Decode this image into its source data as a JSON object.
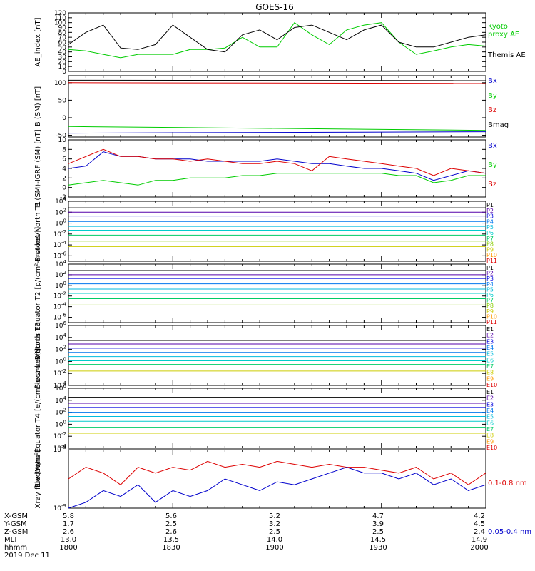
{
  "title": "GOES-16",
  "time_labels": [
    "1800",
    "1830",
    "1900",
    "1930",
    "2000"
  ],
  "ephemeris": {
    "row_labels": [
      "X-GSM",
      "Y-GSM",
      "Z-GSM",
      "MLT",
      "hhmm"
    ],
    "date": "2019 Dec 11",
    "rows": [
      [
        "5.8",
        "5.6",
        "5.2",
        "4.7",
        "4.2"
      ],
      [
        "1.7",
        "2.5",
        "3.2",
        "3.9",
        "4.5"
      ],
      [
        "2.6",
        "2.6",
        "2.5",
        "2.5",
        "2.4"
      ],
      [
        "13.0",
        "13.5",
        "14.0",
        "14.5",
        "14.9"
      ],
      [
        "1800",
        "1830",
        "1900",
        "1930",
        "2000"
      ]
    ]
  },
  "colors": {
    "black": "#000000",
    "green": "#00cc00",
    "red": "#dd0000",
    "blue": "#0000cc",
    "p_series": [
      "#000000",
      "#5500aa",
      "#0000dd",
      "#0077ee",
      "#00bbdd",
      "#00cccc",
      "#00cc66",
      "#88cc00",
      "#cccc00",
      "#ff9900",
      "#dd0000"
    ],
    "e_series": [
      "#000000",
      "#5500aa",
      "#0000dd",
      "#0077ee",
      "#00bbdd",
      "#00cccc",
      "#00cc66",
      "#cccc00",
      "#ff9900",
      "#dd0000"
    ]
  },
  "chart_data": [
    {
      "type": "line",
      "ylabel": "AE_index [nT]",
      "ylim": [
        0,
        120
      ],
      "y_ticks": [
        "0",
        "10",
        "20",
        "30",
        "40",
        "50",
        "60",
        "70",
        "80",
        "90",
        "100",
        "110",
        "120"
      ],
      "x": [
        0,
        5,
        10,
        15,
        20,
        25,
        30,
        35,
        40,
        45,
        50,
        55,
        60,
        65,
        70,
        75,
        80,
        85,
        90,
        95,
        100,
        105,
        110,
        115,
        120
      ],
      "series": [
        {
          "name": "Kyoto proxy AE",
          "color": "#00cc00",
          "values": [
            45,
            42,
            35,
            28,
            35,
            35,
            35,
            45,
            45,
            48,
            70,
            50,
            50,
            100,
            75,
            55,
            85,
            95,
            100,
            60,
            35,
            42,
            50,
            55,
            52
          ]
        },
        {
          "name": "Themis AE",
          "color": "#000000",
          "values": [
            55,
            80,
            95,
            48,
            45,
            55,
            95,
            70,
            45,
            40,
            75,
            85,
            65,
            90,
            95,
            80,
            65,
            85,
            95,
            60,
            50,
            50,
            60,
            70,
            75
          ]
        }
      ]
    },
    {
      "type": "line",
      "ylabel": "B (SM) [nT]",
      "ylim": [
        -55,
        120
      ],
      "y_ticks": [
        "-50",
        "0",
        "50",
        "100"
      ],
      "x": [
        0,
        120
      ],
      "series": [
        {
          "name": "Bx",
          "color": "#0000cc",
          "values": [
            -44,
            -40
          ]
        },
        {
          "name": "By",
          "color": "#00cc00",
          "values": [
            -25,
            -36
          ]
        },
        {
          "name": "Bz",
          "color": "#dd0000",
          "values": [
            100,
            98
          ]
        },
        {
          "name": "Bmag",
          "color": "#000000",
          "values": [
            107,
            106
          ]
        }
      ]
    },
    {
      "type": "line",
      "ylabel": "B (SM)-IGRF (SM) [nT]",
      "ylim": [
        -2,
        10
      ],
      "y_ticks": [
        "-2",
        "0",
        "2",
        "4",
        "6",
        "8",
        "10"
      ],
      "x": [
        0,
        5,
        10,
        15,
        20,
        25,
        30,
        35,
        40,
        45,
        50,
        55,
        60,
        65,
        70,
        75,
        80,
        85,
        90,
        95,
        100,
        105,
        110,
        115,
        120
      ],
      "series": [
        {
          "name": "Bx",
          "color": "#0000cc",
          "values": [
            4.0,
            4.5,
            7.5,
            6.5,
            6.5,
            6.0,
            6.0,
            6.0,
            5.5,
            5.5,
            5.5,
            5.5,
            6.0,
            5.5,
            5.0,
            5.0,
            4.5,
            4.0,
            4.0,
            3.5,
            3.0,
            1.5,
            2.5,
            3.5,
            3.0
          ]
        },
        {
          "name": "By",
          "color": "#00cc00",
          "values": [
            0.5,
            1.0,
            1.5,
            1.0,
            0.5,
            1.5,
            1.5,
            2.0,
            2.0,
            2.0,
            2.5,
            2.5,
            3.0,
            3.0,
            3.0,
            3.0,
            3.0,
            3.0,
            3.0,
            2.5,
            2.5,
            1.0,
            1.5,
            2.5,
            2.5
          ]
        },
        {
          "name": "Bz",
          "color": "#dd0000",
          "values": [
            5.0,
            6.5,
            8.0,
            6.5,
            6.5,
            6.0,
            6.0,
            5.5,
            6.0,
            5.5,
            5.0,
            5.0,
            5.5,
            5.0,
            3.5,
            6.5,
            6.0,
            5.5,
            5.0,
            4.5,
            4.0,
            2.5,
            4.0,
            3.5,
            3.0
          ]
        }
      ]
    },
    {
      "type": "line",
      "ylabel": "Protons North T1",
      "log": true,
      "ylim_exp": [
        -7,
        4
      ],
      "y_ticks": [
        "10^4",
        "10^2",
        "10^0",
        "10^-2",
        "10^-4",
        "10^-6"
      ],
      "y_tick_exps": [
        4,
        2,
        0,
        -2,
        -4,
        -6
      ],
      "series_names": [
        "P1",
        "P2",
        "P3",
        "P4",
        "P5",
        "P6",
        "P7",
        "P8",
        "P9",
        "P10",
        "P11"
      ],
      "levels_exp": [
        2.8,
        2.0,
        1.3,
        0.3,
        -0.6,
        -1.3,
        -2.2,
        -3.3,
        -4.3
      ]
    },
    {
      "type": "line",
      "ylabel": "Protons Equator T2 [p/(cm²-s-sr-keV)]",
      "log": true,
      "ylim_exp": [
        -7,
        4
      ],
      "y_ticks": [
        "10^4",
        "10^2",
        "10^0",
        "10^-2",
        "10^-4",
        "10^-6"
      ],
      "y_tick_exps": [
        4,
        2,
        0,
        -2,
        -4,
        -6
      ],
      "series_names": [
        "P1",
        "P2",
        "P3",
        "P4",
        "P5",
        "P6",
        "P7",
        "P8",
        "P9",
        "P10",
        "P11"
      ],
      "levels_exp": [
        2.8,
        2.0,
        1.3,
        0.3,
        -0.7,
        -1.5,
        -2.5,
        -3.7
      ]
    },
    {
      "type": "line",
      "ylabel": "Electrons North T3",
      "log": true,
      "ylim_exp": [
        -4,
        6
      ],
      "y_ticks": [
        "10^6",
        "10^4",
        "10^2",
        "10^0",
        "10^-2",
        "10^-4"
      ],
      "y_tick_exps": [
        6,
        4,
        2,
        0,
        -2,
        -4
      ],
      "series_names": [
        "E1",
        "E2",
        "E3",
        "E4",
        "E5",
        "E6",
        "E7",
        "E8",
        "E9",
        "E10"
      ],
      "levels_exp": [
        3.5,
        2.9,
        2.2,
        1.5,
        0.8,
        0.1,
        -0.5,
        -1.6
      ]
    },
    {
      "type": "line",
      "ylabel": "Electrons Equator T4 [e/(cm²-s-sr-keV)]",
      "log": true,
      "ylim_exp": [
        -4,
        6
      ],
      "y_ticks": [
        "10^6",
        "10^4",
        "10^2",
        "10^0",
        "10^-2",
        "10^-4"
      ],
      "y_tick_exps": [
        6,
        4,
        2,
        0,
        -2,
        -4
      ],
      "series_names": [
        "E1",
        "E2",
        "E3",
        "E4",
        "E5",
        "E6",
        "E7",
        "E8",
        "E9",
        "E10"
      ],
      "levels_exp": [
        4.5,
        3.5,
        2.8,
        2.0,
        1.3,
        0.5,
        -0.5,
        -1.5
      ]
    },
    {
      "type": "line",
      "ylabel": "Xray flux [W/m²]",
      "log": true,
      "ylim_exp": [
        -9,
        -8
      ],
      "y_ticks": [
        "10^-8",
        "10^-9"
      ],
      "y_tick_exps": [
        -8,
        -9
      ],
      "x": [
        0,
        5,
        10,
        15,
        20,
        25,
        30,
        35,
        40,
        45,
        50,
        55,
        60,
        65,
        70,
        75,
        80,
        85,
        90,
        95,
        100,
        105,
        110,
        115,
        120
      ],
      "series": [
        {
          "name": "0.1-0.8 nm",
          "color": "#dd0000",
          "values": [
            -8.5,
            -8.3,
            -8.4,
            -8.6,
            -8.3,
            -8.4,
            -8.3,
            -8.35,
            -8.2,
            -8.3,
            -8.25,
            -8.3,
            -8.2,
            -8.25,
            -8.3,
            -8.25,
            -8.3,
            -8.3,
            -8.35,
            -8.4,
            -8.3,
            -8.5,
            -8.4,
            -8.6,
            -8.4
          ]
        },
        {
          "name": "0.05-0.4 nm",
          "color": "#0000cc",
          "values": [
            -9.0,
            -8.9,
            -8.7,
            -8.8,
            -8.6,
            -8.9,
            -8.7,
            -8.8,
            -8.7,
            -8.5,
            -8.6,
            -8.7,
            -8.55,
            -8.6,
            -8.5,
            -8.4,
            -8.3,
            -8.4,
            -8.4,
            -8.5,
            -8.4,
            -8.6,
            -8.5,
            -8.7,
            -8.6
          ]
        }
      ]
    }
  ]
}
